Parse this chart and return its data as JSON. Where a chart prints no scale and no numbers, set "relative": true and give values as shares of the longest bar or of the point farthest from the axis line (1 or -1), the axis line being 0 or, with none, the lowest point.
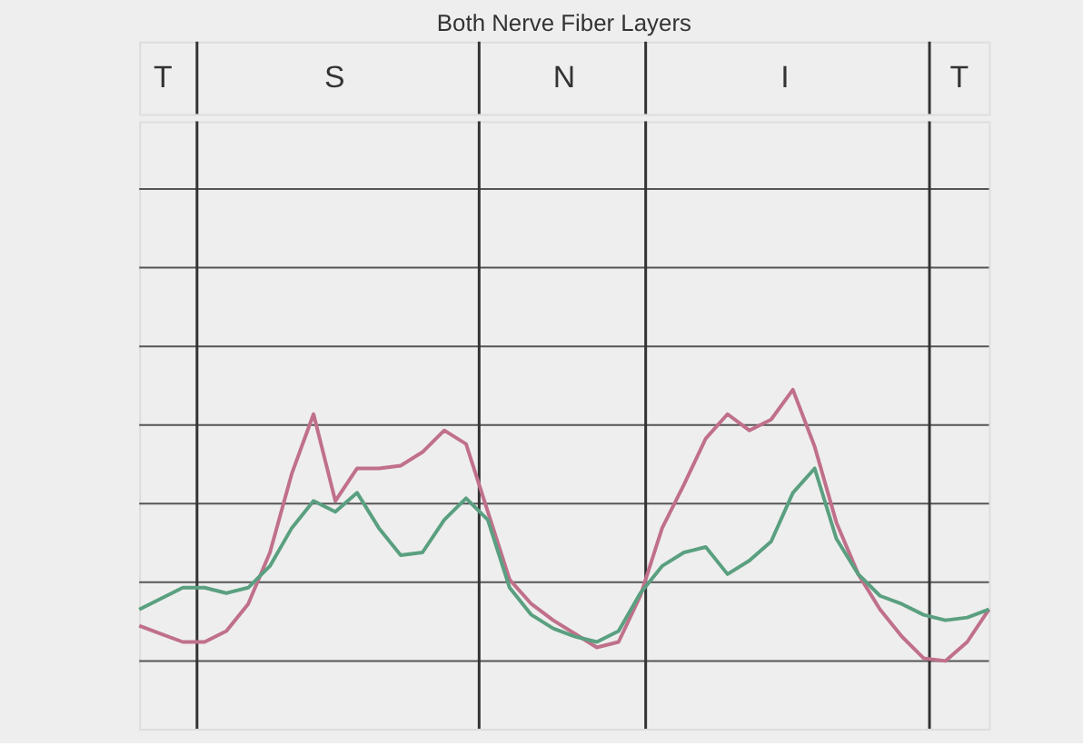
{
  "chart_data": {
    "type": "line",
    "title": "Both Nerve Fiber Layers",
    "relative": true,
    "grid": true,
    "annotations": [
      "T",
      "S",
      "N",
      "I",
      "T"
    ],
    "categories": [
      null,
      null,
      null,
      null,
      null,
      null,
      null,
      null,
      null,
      null,
      null,
      null,
      null,
      null,
      null,
      null,
      null,
      null,
      null,
      null,
      null,
      null,
      null,
      null,
      null,
      null,
      null,
      null,
      null,
      null,
      null,
      null,
      null,
      null,
      null,
      null,
      null,
      null,
      null,
      null
    ],
    "series": [
      {
        "color": "#c0708a",
        "values": [
          0.13,
          0.1,
          0.07,
          0.07,
          0.11,
          0.21,
          0.4,
          0.69,
          0.91,
          0.59,
          0.71,
          0.71,
          0.72,
          0.77,
          0.85,
          0.8,
          0.55,
          0.3,
          0.21,
          0.15,
          0.1,
          0.05,
          0.07,
          0.24,
          0.49,
          0.65,
          0.82,
          0.91,
          0.85,
          0.89,
          1,
          0.79,
          0.51,
          0.32,
          0.19,
          0.09,
          0.01,
          0,
          0.07,
          0.19
        ]
      },
      {
        "color": "#5aa080",
        "values": [
          0.19,
          0.23,
          0.27,
          0.27,
          0.25,
          0.27,
          0.35,
          0.49,
          0.59,
          0.55,
          0.62,
          0.49,
          0.39,
          0.4,
          0.52,
          0.6,
          0.52,
          0.27,
          0.17,
          0.12,
          0.09,
          0.07,
          0.11,
          0.25,
          0.35,
          0.4,
          0.42,
          0.32,
          0.37,
          0.44,
          0.62,
          0.71,
          0.45,
          0.32,
          0.24,
          0.21,
          0.17,
          0.15,
          0.16,
          0.19
        ]
      }
    ]
  }
}
